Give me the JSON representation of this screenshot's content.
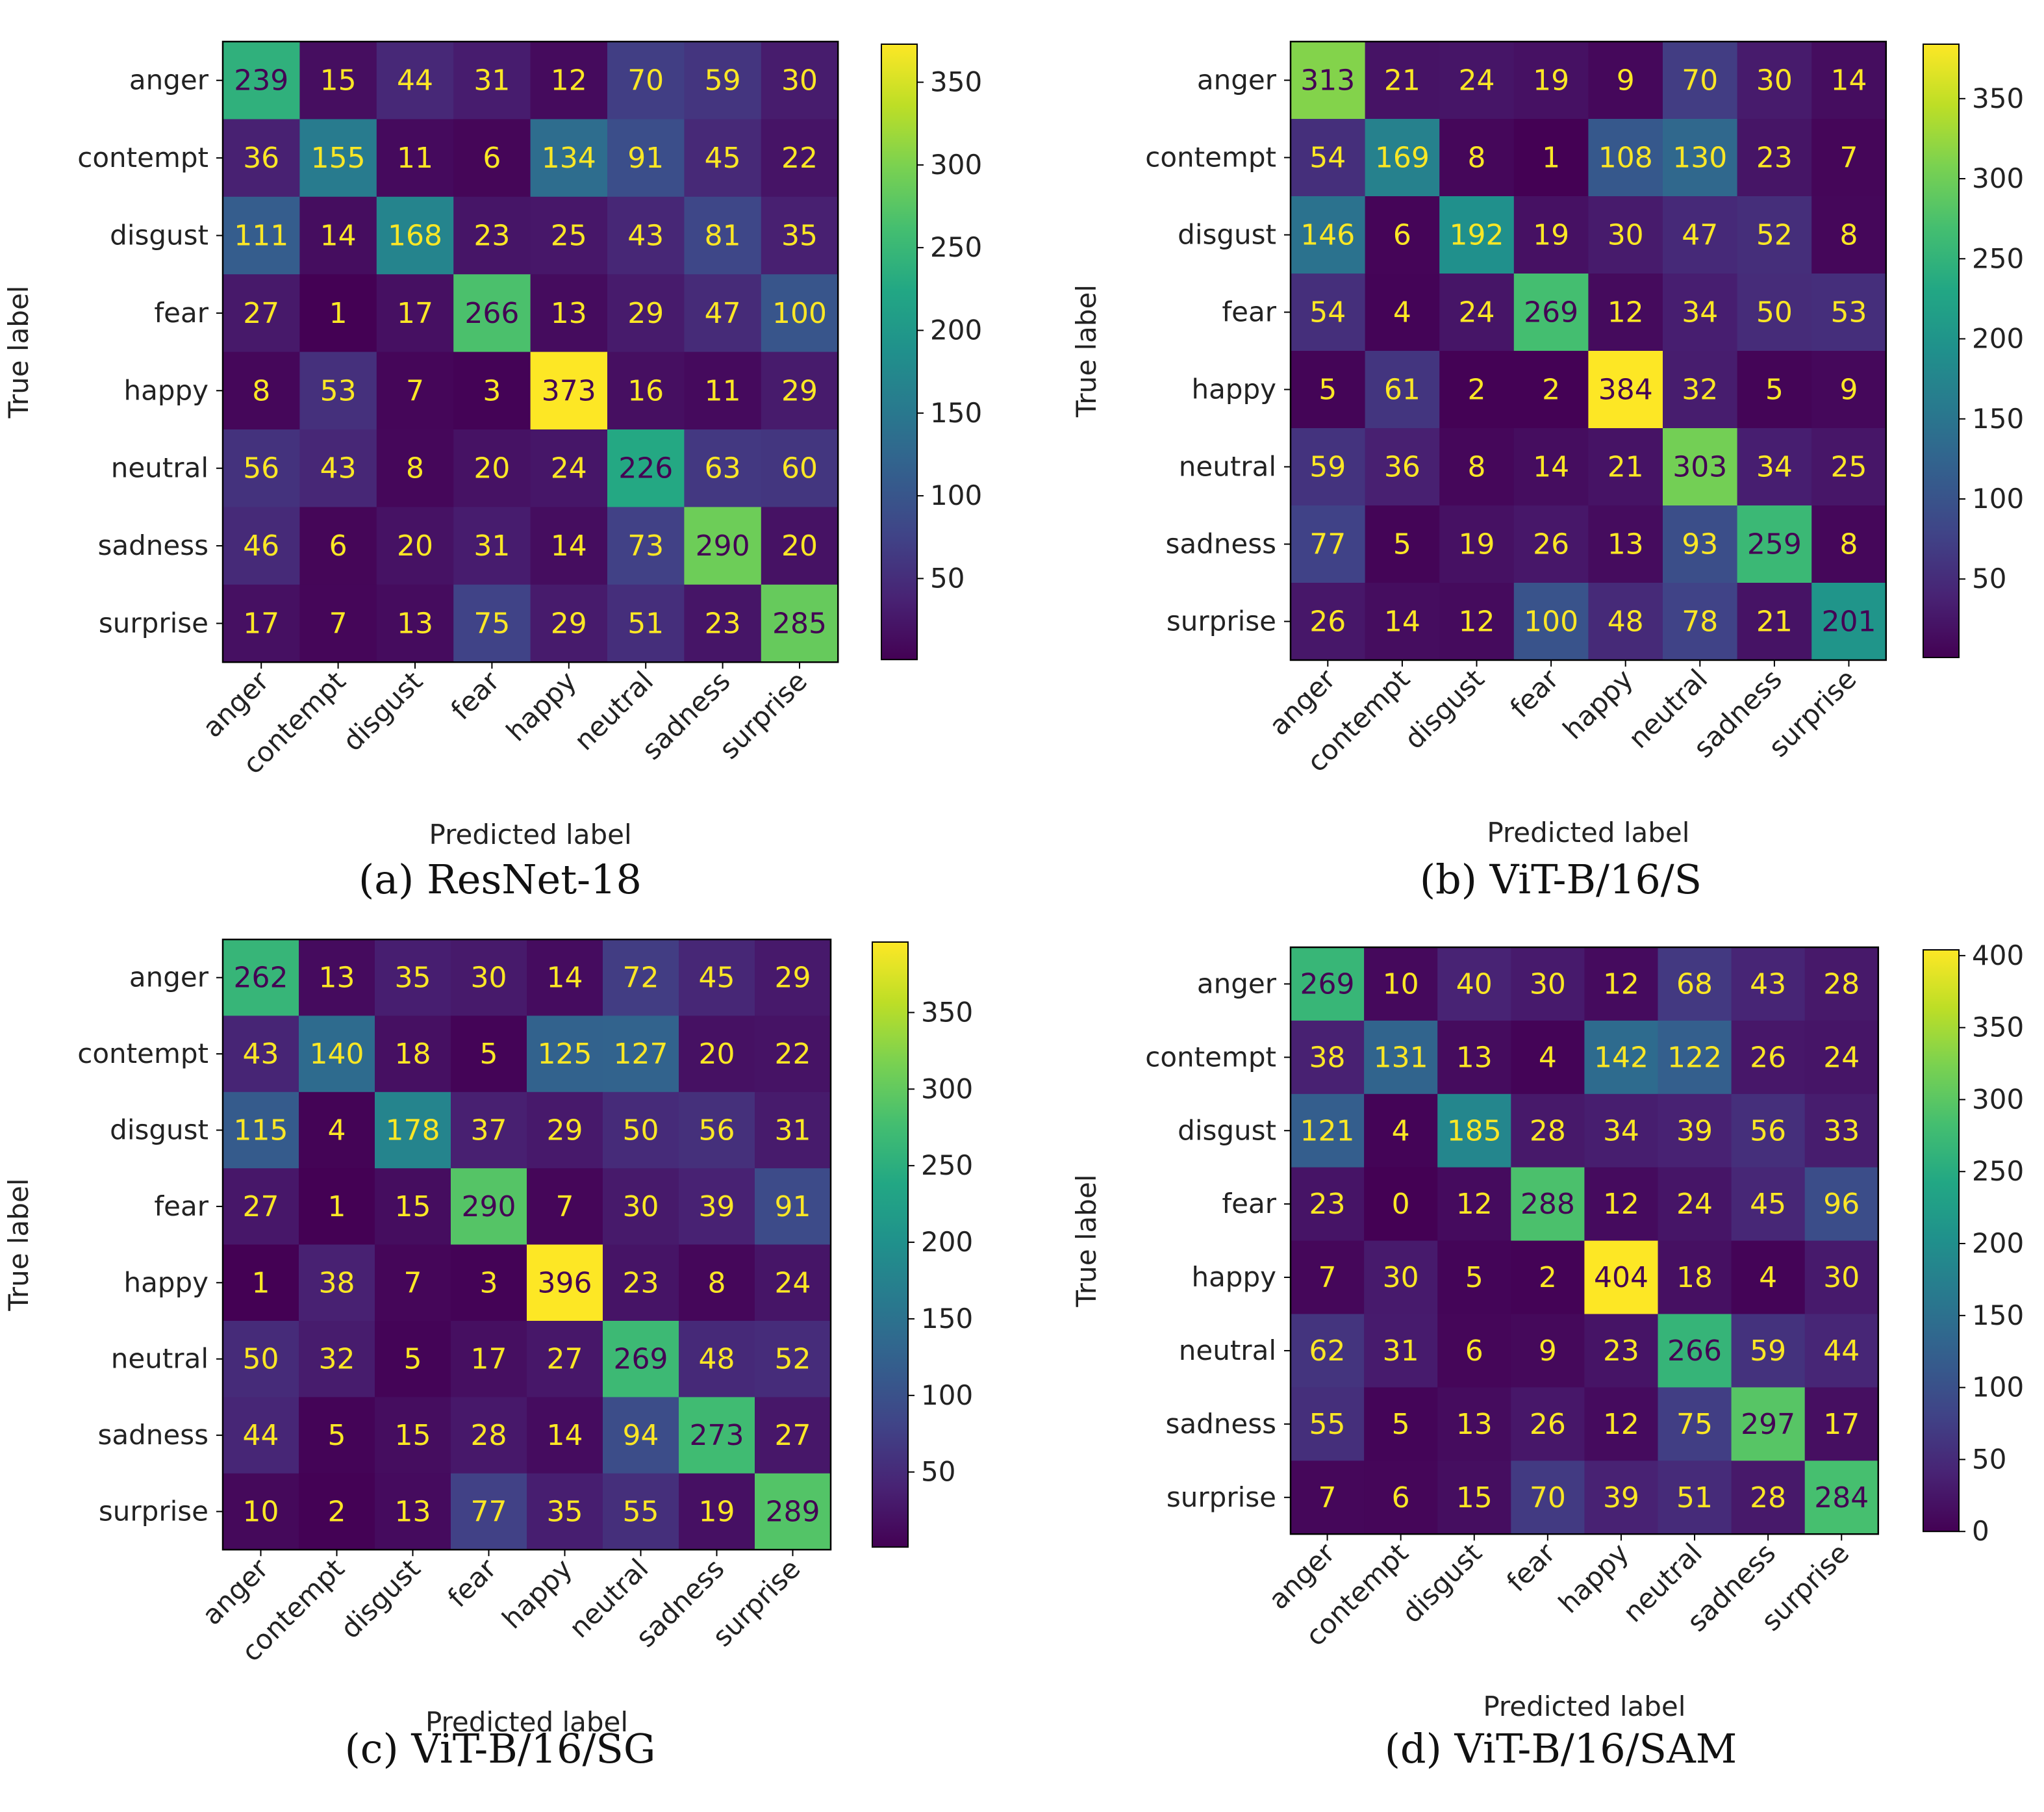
{
  "chart_data": [
    {
      "type": "heatmap",
      "caption": "(a) ResNet-18",
      "xlabel": "Predicted label",
      "ylabel": "True label",
      "categories": [
        "anger",
        "contempt",
        "disgust",
        "fear",
        "happy",
        "neutral",
        "sadness",
        "surprise"
      ],
      "matrix": [
        [
          239,
          15,
          44,
          31,
          12,
          70,
          59,
          30
        ],
        [
          36,
          155,
          11,
          6,
          134,
          91,
          45,
          22
        ],
        [
          111,
          14,
          168,
          23,
          25,
          43,
          81,
          35
        ],
        [
          27,
          1,
          17,
          266,
          13,
          29,
          47,
          100
        ],
        [
          8,
          53,
          7,
          3,
          373,
          16,
          11,
          29
        ],
        [
          56,
          43,
          8,
          20,
          24,
          226,
          63,
          60
        ],
        [
          46,
          6,
          20,
          31,
          14,
          73,
          290,
          20
        ],
        [
          17,
          7,
          13,
          75,
          29,
          51,
          23,
          285
        ]
      ],
      "vmin": 1,
      "vmax": 373,
      "colorbar_ticks": [
        50,
        100,
        150,
        200,
        250,
        300,
        350
      ],
      "colormap": "viridis"
    },
    {
      "type": "heatmap",
      "caption": "(b) ViT-B/16/S",
      "xlabel": "Predicted label",
      "ylabel": "True label",
      "categories": [
        "anger",
        "contempt",
        "disgust",
        "fear",
        "happy",
        "neutral",
        "sadness",
        "surprise"
      ],
      "matrix": [
        [
          313,
          21,
          24,
          19,
          9,
          70,
          30,
          14
        ],
        [
          54,
          169,
          8,
          1,
          108,
          130,
          23,
          7
        ],
        [
          146,
          6,
          192,
          19,
          30,
          47,
          52,
          8
        ],
        [
          54,
          4,
          24,
          269,
          12,
          34,
          50,
          53
        ],
        [
          5,
          61,
          2,
          2,
          384,
          32,
          5,
          9
        ],
        [
          59,
          36,
          8,
          14,
          21,
          303,
          34,
          25
        ],
        [
          77,
          5,
          19,
          26,
          13,
          93,
          259,
          8
        ],
        [
          26,
          14,
          12,
          100,
          48,
          78,
          21,
          201
        ]
      ],
      "vmin": 1,
      "vmax": 384,
      "colorbar_ticks": [
        50,
        100,
        150,
        200,
        250,
        300,
        350
      ],
      "colormap": "viridis"
    },
    {
      "type": "heatmap",
      "caption": "(c) ViT-B/16/SG",
      "xlabel": "Predicted label",
      "ylabel": "True label",
      "categories": [
        "anger",
        "contempt",
        "disgust",
        "fear",
        "happy",
        "neutral",
        "sadness",
        "surprise"
      ],
      "matrix": [
        [
          262,
          13,
          35,
          30,
          14,
          72,
          45,
          29
        ],
        [
          43,
          140,
          18,
          5,
          125,
          127,
          20,
          22
        ],
        [
          115,
          4,
          178,
          37,
          29,
          50,
          56,
          31
        ],
        [
          27,
          1,
          15,
          290,
          7,
          30,
          39,
          91
        ],
        [
          1,
          38,
          7,
          3,
          396,
          23,
          8,
          24
        ],
        [
          50,
          32,
          5,
          17,
          27,
          269,
          48,
          52
        ],
        [
          44,
          5,
          15,
          28,
          14,
          94,
          273,
          27
        ],
        [
          10,
          2,
          13,
          77,
          35,
          55,
          19,
          289
        ]
      ],
      "vmin": 1,
      "vmax": 396,
      "colorbar_ticks": [
        50,
        100,
        150,
        200,
        250,
        300,
        350
      ],
      "colormap": "viridis"
    },
    {
      "type": "heatmap",
      "caption": "(d) ViT-B/16/SAM",
      "xlabel": "Predicted label",
      "ylabel": "True label",
      "categories": [
        "anger",
        "contempt",
        "disgust",
        "fear",
        "happy",
        "neutral",
        "sadness",
        "surprise"
      ],
      "matrix": [
        [
          269,
          10,
          40,
          30,
          12,
          68,
          43,
          28
        ],
        [
          38,
          131,
          13,
          4,
          142,
          122,
          26,
          24
        ],
        [
          121,
          4,
          185,
          28,
          34,
          39,
          56,
          33
        ],
        [
          23,
          0,
          12,
          288,
          12,
          24,
          45,
          96
        ],
        [
          7,
          30,
          5,
          2,
          404,
          18,
          4,
          30
        ],
        [
          62,
          31,
          6,
          9,
          23,
          266,
          59,
          44
        ],
        [
          55,
          5,
          13,
          26,
          12,
          75,
          297,
          17
        ],
        [
          7,
          6,
          15,
          70,
          39,
          51,
          28,
          284
        ]
      ],
      "vmin": 0,
      "vmax": 404,
      "colorbar_ticks": [
        0,
        50,
        100,
        150,
        200,
        250,
        300,
        350,
        400
      ],
      "colormap": "viridis"
    }
  ]
}
